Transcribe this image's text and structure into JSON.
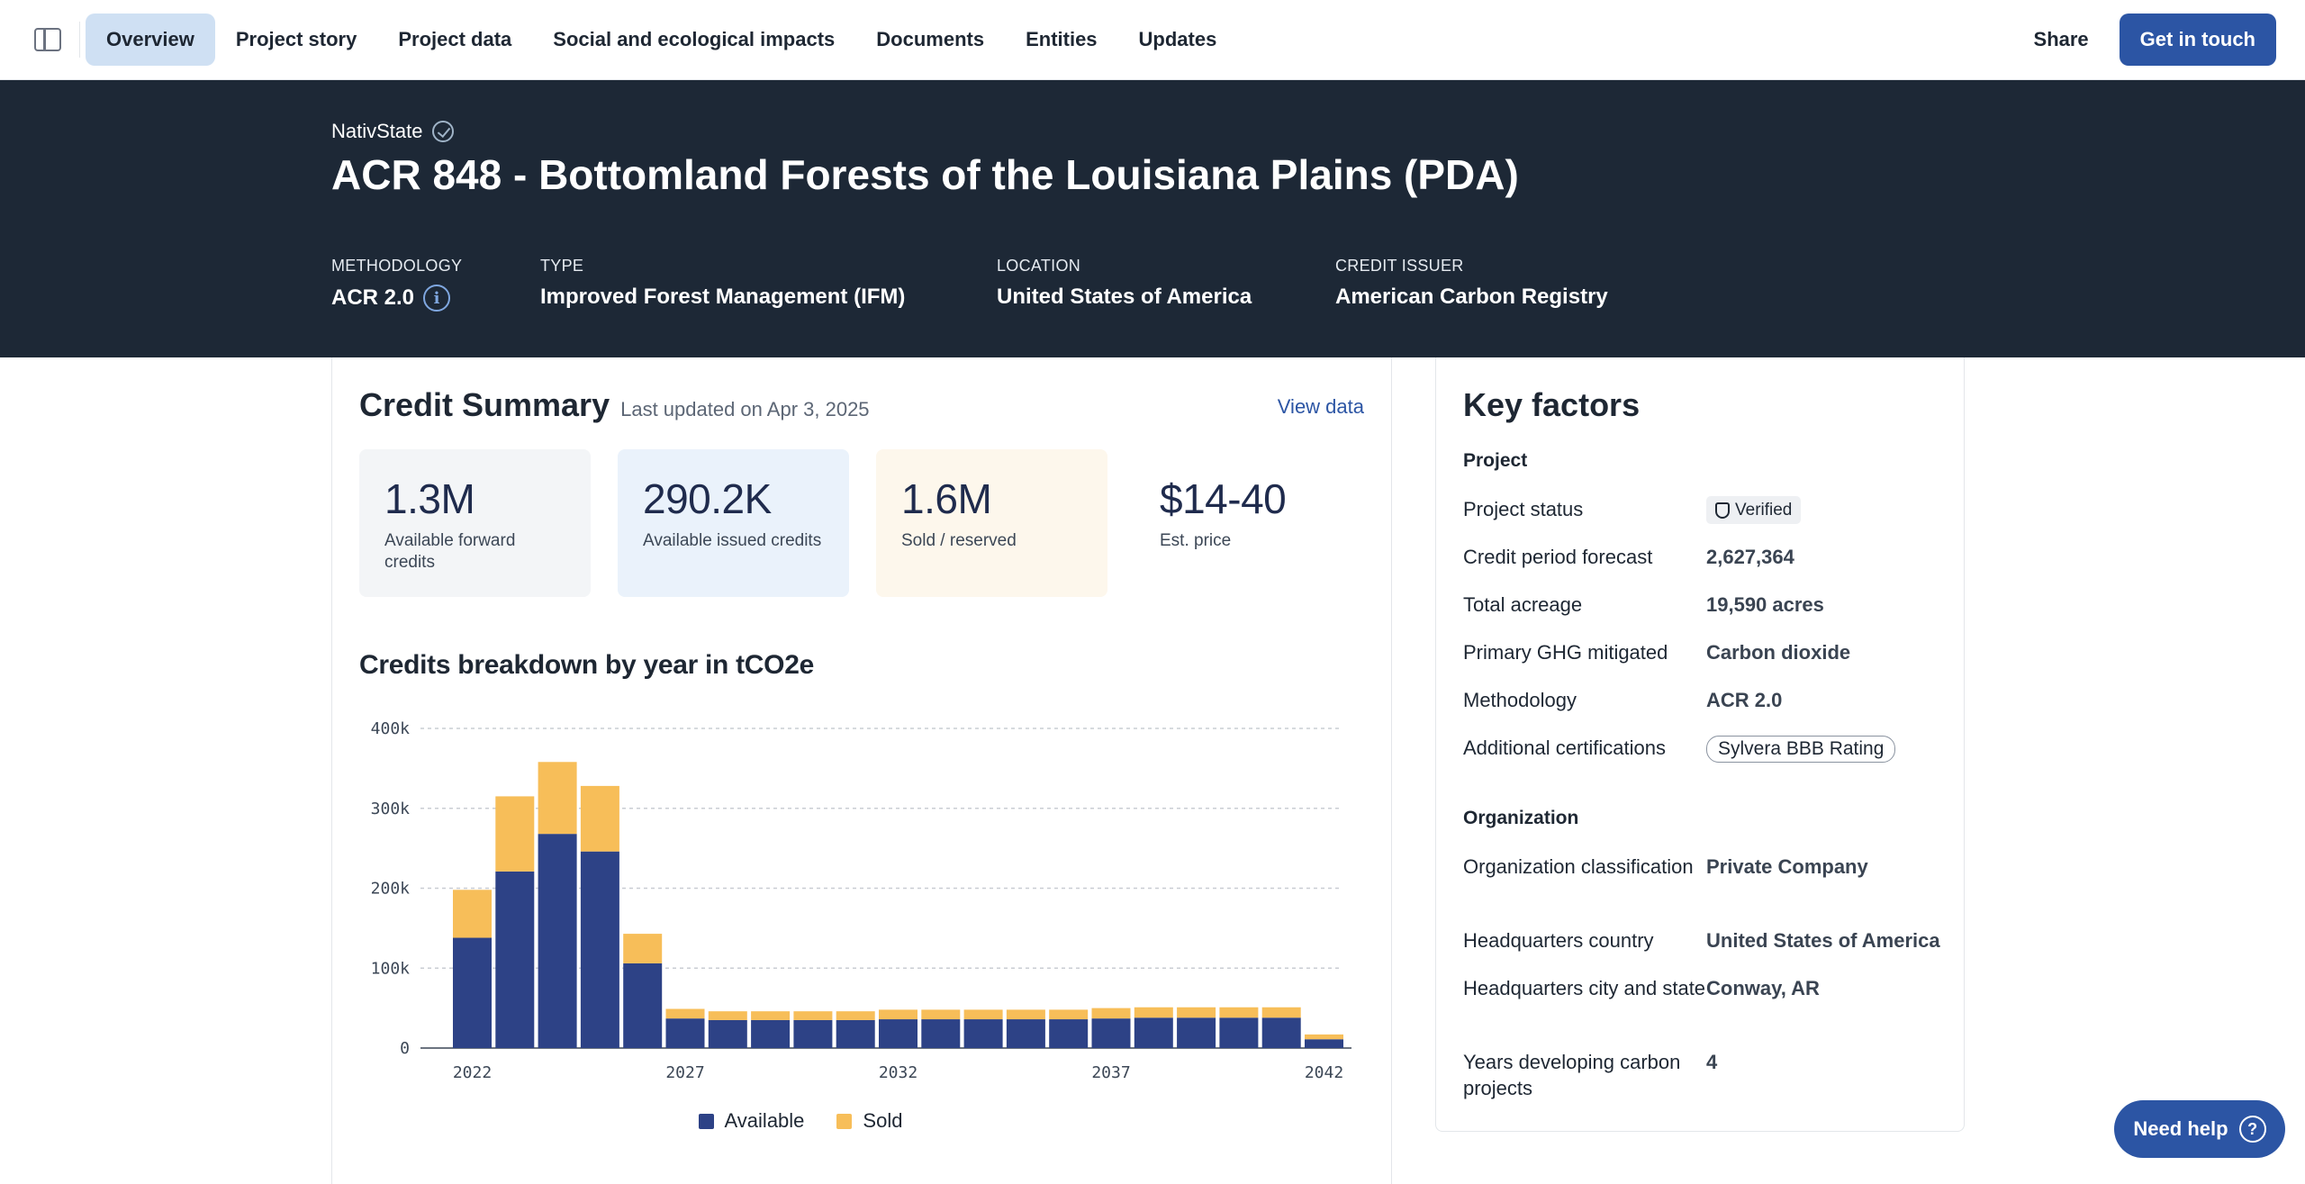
{
  "nav": {
    "tabs": [
      {
        "label": "Overview",
        "active": true
      },
      {
        "label": "Project story"
      },
      {
        "label": "Project data"
      },
      {
        "label": "Social and ecological impacts"
      },
      {
        "label": "Documents"
      },
      {
        "label": "Entities"
      },
      {
        "label": "Updates"
      }
    ],
    "share_label": "Share",
    "cta_label": "Get in touch"
  },
  "hero": {
    "developer": "NativState",
    "title": "ACR 848 - Bottomland Forests of the Louisiana Plains (PDA)",
    "meta": [
      {
        "label": "METHODOLOGY",
        "value": "ACR 2.0"
      },
      {
        "label": "TYPE",
        "value": "Improved Forest Management (IFM)"
      },
      {
        "label": "LOCATION",
        "value": "United States of America"
      },
      {
        "label": "CREDIT ISSUER",
        "value": "American Carbon Registry"
      }
    ]
  },
  "credit_summary": {
    "title": "Credit Summary",
    "updated": "Last updated on Apr 3, 2025",
    "view_data": "View data",
    "stats": [
      {
        "value": "1.3M",
        "label": "Available forward credits",
        "bg": "#f3f5f7"
      },
      {
        "value": "290.2K",
        "label": "Available issued credits",
        "bg": "#eaf2fb"
      },
      {
        "value": "1.6M",
        "label": "Sold / reserved",
        "bg": "#fdf7ec"
      },
      {
        "value": "$14-40",
        "label": "Est. price",
        "bg": "#ffffff"
      }
    ],
    "breakdown_title": "Credits breakdown by year in tCO2e"
  },
  "chart_data": {
    "type": "bar",
    "stacked": true,
    "x": [
      2022,
      2023,
      2024,
      2025,
      2026,
      2027,
      2028,
      2029,
      2030,
      2031,
      2032,
      2033,
      2034,
      2035,
      2036,
      2037,
      2038,
      2039,
      2040,
      2041,
      2042
    ],
    "x_tick_labels": [
      "2022",
      "2027",
      "2032",
      "2037",
      "2042"
    ],
    "y_tick_labels": [
      "0",
      "100k",
      "200k",
      "300k",
      "400k"
    ],
    "ylim": [
      0,
      400000
    ],
    "grid": true,
    "legend": "bottom-center",
    "series": [
      {
        "name": "Available",
        "color": "#2d4286",
        "values": [
          138000,
          221000,
          268000,
          246000,
          106000,
          37000,
          35000,
          35000,
          35000,
          35000,
          36000,
          36000,
          36000,
          36000,
          36000,
          37000,
          38000,
          38000,
          38000,
          38000,
          11000
        ]
      },
      {
        "name": "Sold",
        "color": "#f7be59",
        "values": [
          60000,
          94000,
          90000,
          82000,
          37000,
          12000,
          11000,
          11000,
          11000,
          11000,
          12000,
          12000,
          12000,
          12000,
          12000,
          13000,
          13000,
          13000,
          13000,
          13000,
          6000
        ]
      }
    ]
  },
  "key_factors": {
    "title": "Key factors",
    "project_section": "Project",
    "project_rows": [
      {
        "label": "Project status",
        "value": "Verified",
        "kind": "verified"
      },
      {
        "label": "Credit period forecast",
        "value": "2,627,364"
      },
      {
        "label": "Total acreage",
        "value": "19,590 acres"
      },
      {
        "label": "Primary GHG mitigated",
        "value": "Carbon dioxide"
      },
      {
        "label": "Methodology",
        "value": "ACR 2.0"
      },
      {
        "label": "Additional certifications",
        "value": "Sylvera BBB Rating",
        "kind": "pill"
      }
    ],
    "org_section": "Organization",
    "org_rows": [
      {
        "label": "Organization classification",
        "value": "Private Company"
      },
      {
        "label": "Headquarters country",
        "value": "United States of America"
      },
      {
        "label": "Headquarters city and state",
        "value": "Conway, AR"
      },
      {
        "label": "Years developing carbon projects",
        "value": "4"
      }
    ]
  },
  "help": {
    "label": "Need help",
    "icon": "question-icon"
  }
}
